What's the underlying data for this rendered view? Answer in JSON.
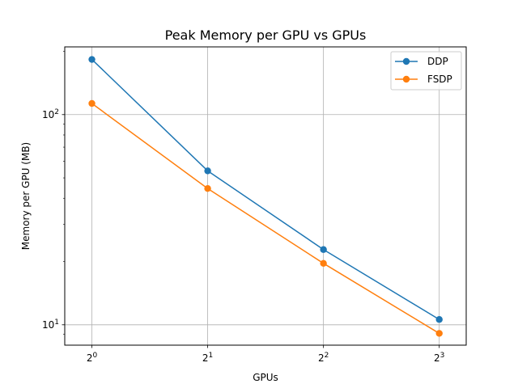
{
  "chart_data": {
    "type": "line",
    "title": "Peak Memory per GPU vs GPUs",
    "xlabel": "GPUs",
    "ylabel": "Memory per GPU (MB)",
    "x_scale": "log2",
    "y_scale": "log10",
    "x": [
      1,
      2,
      4,
      8
    ],
    "x_tick_labels": [
      {
        "base": "2",
        "exp": "0"
      },
      {
        "base": "2",
        "exp": "1"
      },
      {
        "base": "2",
        "exp": "2"
      },
      {
        "base": "2",
        "exp": "3"
      }
    ],
    "y_ticks": [
      10,
      100
    ],
    "y_tick_labels": [
      {
        "base": "10",
        "exp": "1"
      },
      {
        "base": "10",
        "exp": "2"
      }
    ],
    "xlim": [
      0.85,
      9.4
    ],
    "ylim": [
      8.0,
      210
    ],
    "grid": true,
    "legend_position": "top-right",
    "series": [
      {
        "name": "DDP",
        "color": "#1f77b4",
        "values": [
          183,
          54,
          22.8,
          10.6
        ]
      },
      {
        "name": "FSDP",
        "color": "#ff7f0e",
        "values": [
          113,
          44.5,
          19.6,
          9.1
        ]
      }
    ]
  }
}
